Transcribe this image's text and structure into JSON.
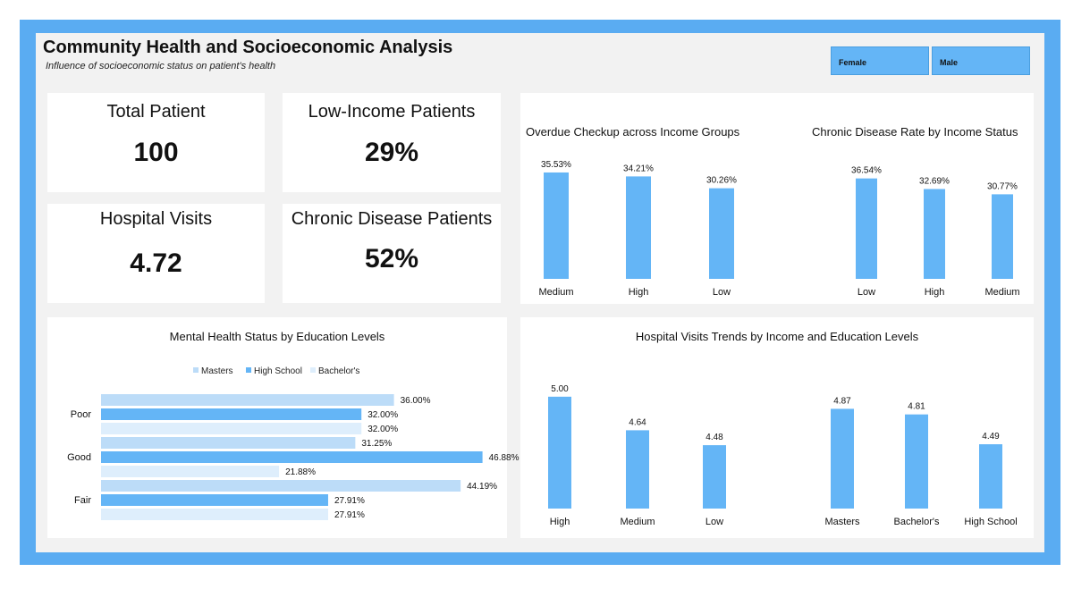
{
  "header": {
    "title": "Community Health and Socioeconomic Analysis",
    "subtitle": "Influence of socioeconomic status on patient's health"
  },
  "slicers": [
    {
      "label": "Female"
    },
    {
      "label": "Male"
    }
  ],
  "kpis": [
    {
      "label": "Total Patient",
      "value": "100"
    },
    {
      "label": "Low-Income Patients",
      "value": "29%"
    },
    {
      "label": "Hospital Visits",
      "value": "4.72"
    },
    {
      "label": "Chronic Disease Patients",
      "value": "52%"
    }
  ],
  "colors": {
    "bar": "#64b5f6",
    "masters": "#bcdcf8",
    "high_school": "#64b5f6",
    "bachelors": "#deeefc",
    "frame": "#5aacf2"
  },
  "chart_data": [
    {
      "id": "overdue",
      "type": "bar",
      "title": "Overdue Checkup across Income Groups",
      "categories": [
        "Medium",
        "High",
        "Low"
      ],
      "values": [
        35.53,
        34.21,
        30.26
      ],
      "labels": [
        "35.53%",
        "34.21%",
        "30.26%"
      ],
      "ylim": [
        0,
        40
      ]
    },
    {
      "id": "chronic",
      "type": "bar",
      "title": "Chronic Disease Rate by Income Status",
      "categories": [
        "Low",
        "High",
        "Medium"
      ],
      "values": [
        36.54,
        32.69,
        30.77
      ],
      "labels": [
        "36.54%",
        "32.69%",
        "30.77%"
      ],
      "ylim": [
        0,
        40
      ]
    },
    {
      "id": "mental",
      "type": "bar",
      "orientation": "horizontal",
      "title": "Mental Health Status by Education Levels",
      "categories": [
        "Poor",
        "Good",
        "Fair"
      ],
      "legend": [
        "Masters",
        "High School",
        "Bachelor's"
      ],
      "series": [
        {
          "name": "Masters",
          "values": [
            36.0,
            31.25,
            44.19
          ],
          "labels": [
            "36.00%",
            "31.25%",
            "44.19%"
          ]
        },
        {
          "name": "High School",
          "values": [
            32.0,
            46.88,
            27.91
          ],
          "labels": [
            "32.00%",
            "46.88%",
            "27.91%"
          ]
        },
        {
          "name": "Bachelor's",
          "values": [
            32.0,
            21.88,
            27.91
          ],
          "labels": [
            "32.00%",
            "21.88%",
            "27.91%"
          ]
        }
      ],
      "xlim": [
        0,
        50
      ]
    },
    {
      "id": "visits",
      "type": "bar",
      "title": "Hospital Visits Trends by Income and Education Levels",
      "groups": [
        {
          "categories": [
            "High",
            "Medium",
            "Low"
          ],
          "values": [
            5.0,
            4.64,
            4.48
          ],
          "labels": [
            "5.00",
            "4.64",
            "4.48"
          ]
        },
        {
          "categories": [
            "Masters",
            "Bachelor's",
            "High School"
          ],
          "values": [
            4.87,
            4.81,
            4.49
          ],
          "labels": [
            "4.87",
            "4.81",
            "4.49"
          ]
        }
      ],
      "ylim": [
        3.8,
        5.2
      ]
    }
  ]
}
